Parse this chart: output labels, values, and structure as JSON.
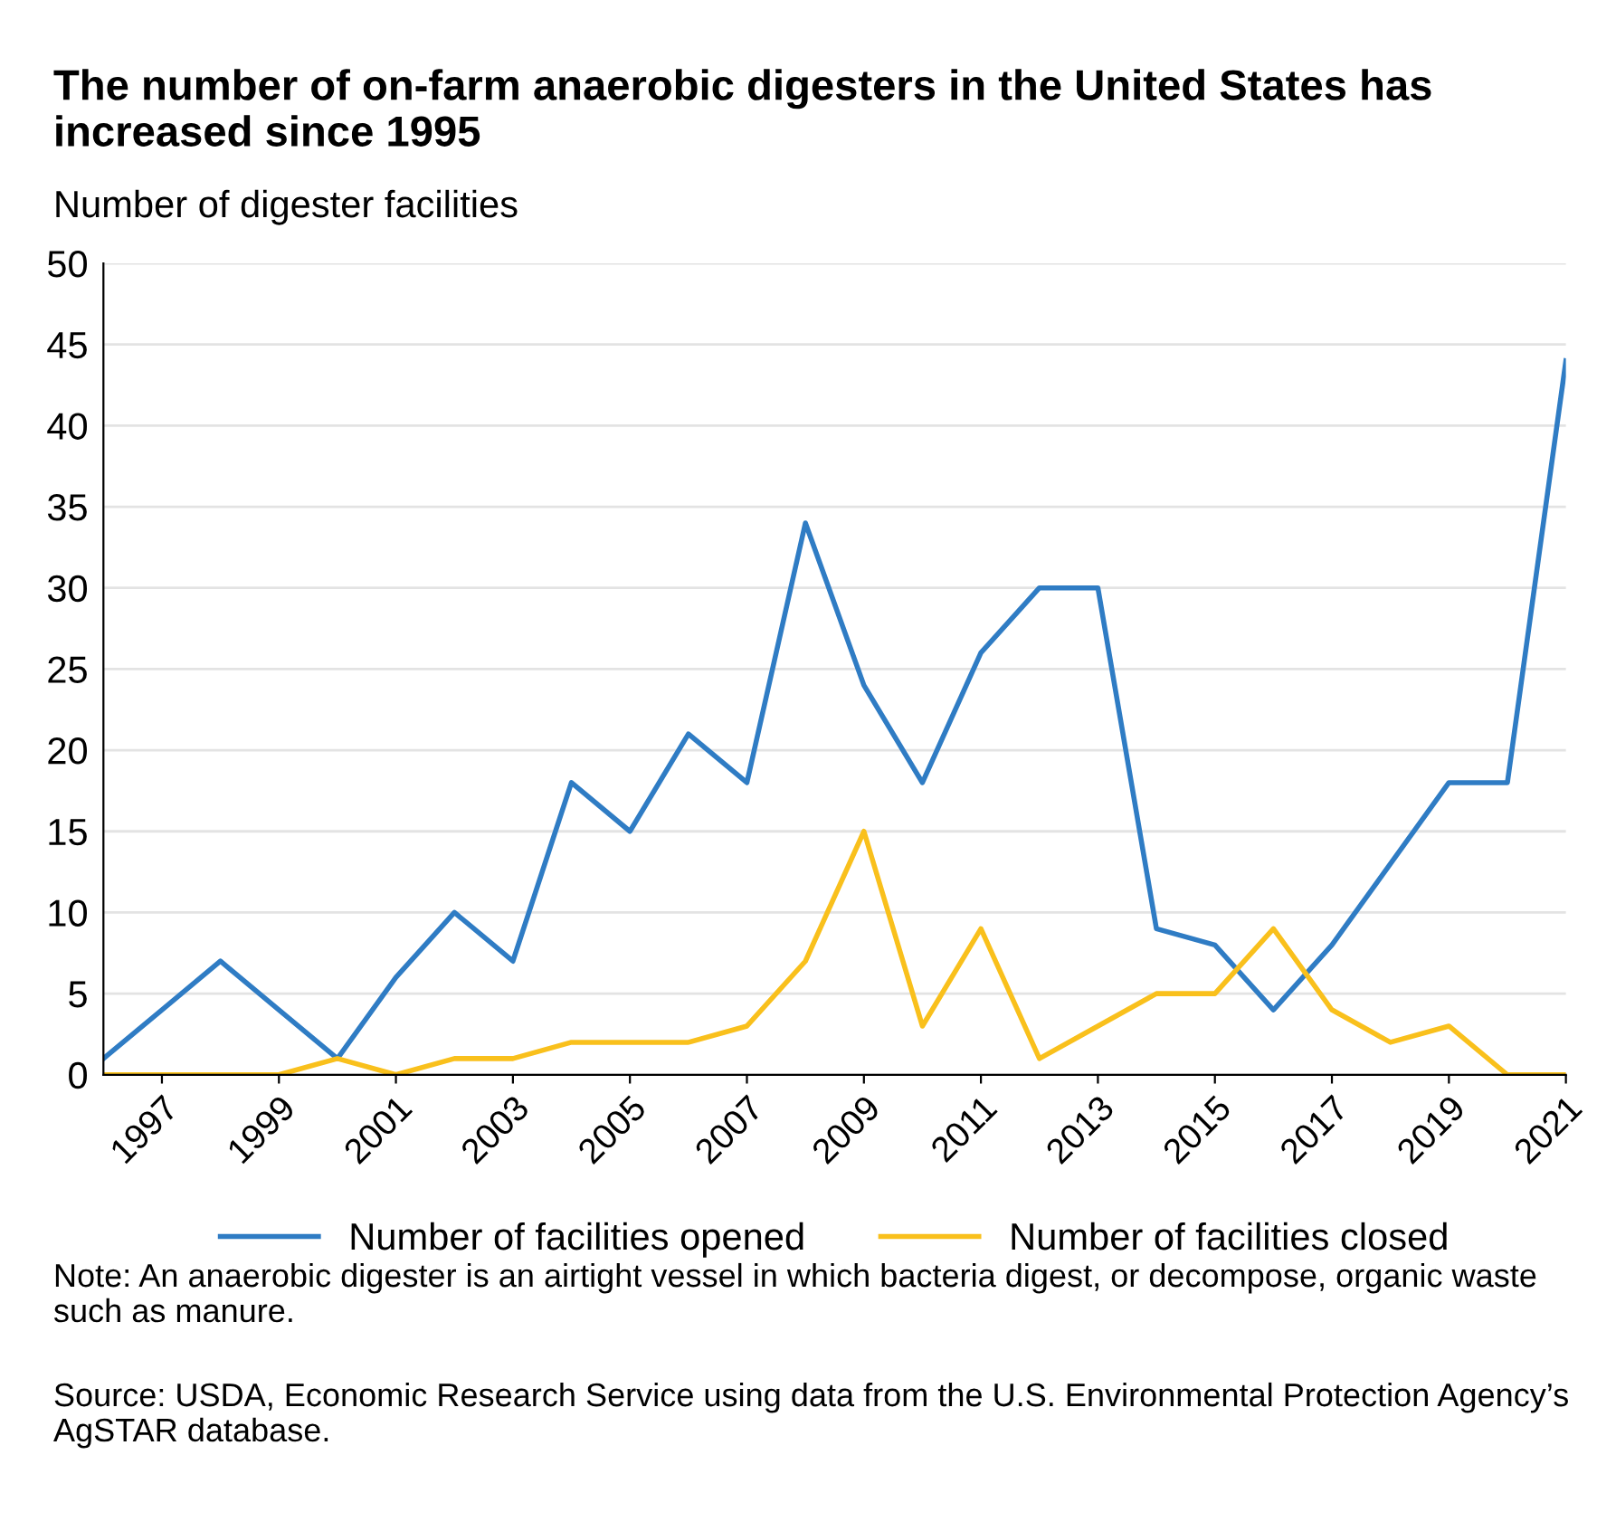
{
  "chart_data": {
    "type": "line",
    "title": "The number of on-farm anaerobic digesters in the United States has increased since 1995",
    "ylabel": "Number of digester facilities",
    "x": [
      1996,
      1997,
      1998,
      1999,
      2000,
      2001,
      2002,
      2003,
      2004,
      2005,
      2006,
      2007,
      2008,
      2009,
      2010,
      2011,
      2012,
      2013,
      2014,
      2015,
      2016,
      2017,
      2018,
      2019,
      2020,
      2021
    ],
    "series": [
      {
        "name": "Number of facilities opened",
        "color": "#2f7cc4",
        "values": [
          1,
          4,
          7,
          4,
          1,
          6,
          10,
          7,
          18,
          15,
          21,
          18,
          34,
          24,
          18,
          26,
          30,
          30,
          9,
          8,
          4,
          8,
          13,
          18,
          18,
          44
        ]
      },
      {
        "name": "Number of facilities closed",
        "color": "#f9c01c",
        "values": [
          0,
          0,
          0,
          0,
          1,
          0,
          1,
          1,
          2,
          2,
          2,
          3,
          7,
          15,
          3,
          9,
          1,
          3,
          5,
          5,
          9,
          4,
          2,
          3,
          0,
          0
        ]
      }
    ],
    "xlim": [
      1996,
      2021
    ],
    "xticks": [
      1997,
      1999,
      2001,
      2003,
      2005,
      2007,
      2009,
      2011,
      2013,
      2015,
      2017,
      2019,
      2021
    ],
    "ylim": [
      0,
      50
    ],
    "yticks": [
      0,
      5,
      10,
      15,
      20,
      25,
      30,
      35,
      40,
      45,
      50
    ],
    "grid": "y",
    "legend": "bottom",
    "marker": "none",
    "line_style": "solid",
    "annotations": [
      "Note: An anaerobic digester is an airtight vessel in which bacteria digest, or decompose, organic waste such as manure.",
      "Source: USDA, Economic Research Service using data from the U.S. Environmental Protection Agency’s AgSTAR database."
    ]
  }
}
